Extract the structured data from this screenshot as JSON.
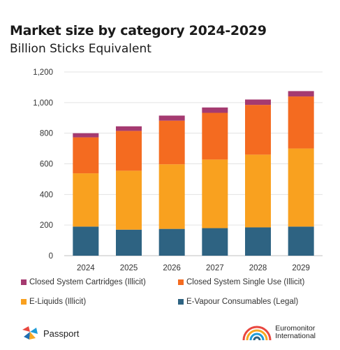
{
  "header": {
    "title": "Market size by category 2024-2029",
    "subtitle": "Billion Sticks Equivalent"
  },
  "chart_data": {
    "type": "bar",
    "stacked": true,
    "categories": [
      "2024",
      "2025",
      "2026",
      "2027",
      "2028",
      "2029"
    ],
    "series": [
      {
        "name": "E-Vapour Consumables (Legal)",
        "color": "#2e6382",
        "values": [
          190,
          170,
          175,
          180,
          185,
          190
        ]
      },
      {
        "name": "E-Liquids (Illicit)",
        "color": "#f9a11f",
        "values": [
          348,
          385,
          422,
          448,
          475,
          510
        ]
      },
      {
        "name": "Closed System Single Use (Illicit)",
        "color": "#f46b20",
        "values": [
          235,
          260,
          285,
          305,
          325,
          340
        ]
      },
      {
        "name": "Closed System Cartridges (Illicit)",
        "color": "#a53a70",
        "values": [
          27,
          30,
          33,
          35,
          35,
          35
        ]
      }
    ],
    "y_ticks": [
      "0",
      "200",
      "400",
      "600",
      "800",
      "1,000",
      "1,200"
    ],
    "ylim": [
      0,
      1200
    ],
    "grid": true,
    "legend_position": "bottom"
  },
  "legend_order": [
    3,
    2,
    1,
    0
  ],
  "footer": {
    "passport_label": "Passport",
    "euromonitor_line1": "Euromonitor",
    "euromonitor_line2": "International"
  }
}
